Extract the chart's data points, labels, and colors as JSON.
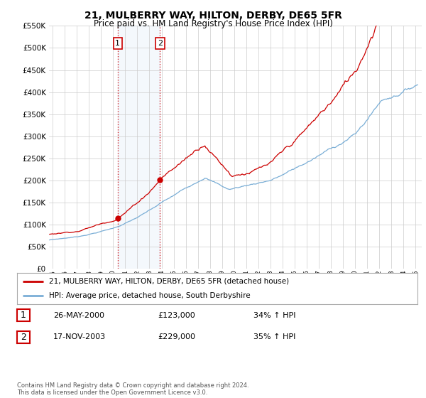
{
  "title": "21, MULBERRY WAY, HILTON, DERBY, DE65 5FR",
  "subtitle": "Price paid vs. HM Land Registry's House Price Index (HPI)",
  "legend_label_red": "21, MULBERRY WAY, HILTON, DERBY, DE65 5FR (detached house)",
  "legend_label_blue": "HPI: Average price, detached house, South Derbyshire",
  "transaction1_label": "1",
  "transaction1_date": "26-MAY-2000",
  "transaction1_price": "£123,000",
  "transaction1_hpi": "34% ↑ HPI",
  "transaction2_label": "2",
  "transaction2_date": "17-NOV-2003",
  "transaction2_price": "£229,000",
  "transaction2_hpi": "35% ↑ HPI",
  "footer": "Contains HM Land Registry data © Crown copyright and database right 2024.\nThis data is licensed under the Open Government Licence v3.0.",
  "red_color": "#cc0000",
  "blue_color": "#7aaed6",
  "background_color": "#ffffff",
  "grid_color": "#cccccc",
  "sale1_date_num": 2000.38,
  "sale1_price": 123000,
  "sale2_date_num": 2003.88,
  "sale2_price": 229000,
  "ylim_min": 0,
  "ylim_max": 550000,
  "xlim_min": 1994.7,
  "xlim_max": 2025.5,
  "shade_x1": 2000.38,
  "shade_x2": 2003.88
}
